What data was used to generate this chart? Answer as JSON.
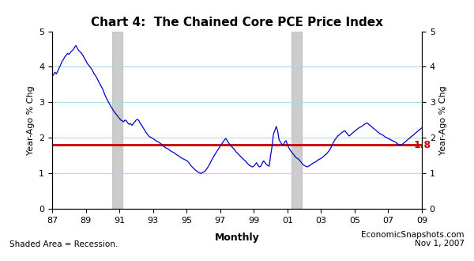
{
  "title": "Chart 4:  The Chained Core PCE Price Index",
  "ylabel_left": "Year-Ago % Chg",
  "ylabel_right": "Year-Ago % Chg",
  "footnote_left": "Shaded Area = Recession.",
  "footnote_right": "EconomicSnapshots.com\nNov 1, 2007",
  "ylim": [
    0,
    5
  ],
  "yticks": [
    0,
    1,
    2,
    3,
    4,
    5
  ],
  "reference_line": 1.8,
  "reference_label": "1.8",
  "line_color": "#0000CC",
  "reference_color": "#CC0000",
  "grid_color": "#ADD8E6",
  "recession_color": "#C0C0C0",
  "recession_alpha": 0.8,
  "recessions": [
    {
      "start": 1990.583,
      "end": 1991.167
    },
    {
      "start": 2001.25,
      "end": 2001.833
    }
  ],
  "start_year": 1987.0,
  "end_year": 2009.0,
  "xtick_values": [
    1987,
    1989,
    1991,
    1993,
    1995,
    1997,
    1999,
    2001,
    2003,
    2005,
    2007,
    2009
  ],
  "xtick_labels": [
    "87",
    "89",
    "91",
    "93",
    "95",
    "97",
    "99",
    "01",
    "03",
    "05",
    "07",
    "09"
  ],
  "pce_data": [
    3.73,
    3.78,
    3.85,
    3.8,
    3.88,
    3.97,
    4.05,
    4.15,
    4.2,
    4.28,
    4.32,
    4.38,
    4.35,
    4.4,
    4.45,
    4.48,
    4.55,
    4.6,
    4.52,
    4.46,
    4.42,
    4.38,
    4.32,
    4.25,
    4.18,
    4.1,
    4.05,
    4.0,
    3.95,
    3.88,
    3.8,
    3.75,
    3.68,
    3.6,
    3.52,
    3.45,
    3.38,
    3.28,
    3.18,
    3.1,
    3.02,
    2.95,
    2.88,
    2.82,
    2.75,
    2.7,
    2.65,
    2.6,
    2.55,
    2.5,
    2.48,
    2.45,
    2.5,
    2.48,
    2.42,
    2.38,
    2.4,
    2.35,
    2.4,
    2.45,
    2.5,
    2.52,
    2.48,
    2.4,
    2.35,
    2.28,
    2.22,
    2.15,
    2.1,
    2.05,
    2.02,
    2.0,
    1.98,
    1.95,
    1.92,
    1.9,
    1.88,
    1.85,
    1.82,
    1.78,
    1.75,
    1.72,
    1.7,
    1.68,
    1.65,
    1.62,
    1.6,
    1.58,
    1.55,
    1.52,
    1.5,
    1.47,
    1.44,
    1.42,
    1.4,
    1.38,
    1.36,
    1.33,
    1.28,
    1.22,
    1.18,
    1.14,
    1.1,
    1.07,
    1.04,
    1.02,
    1.0,
    1.01,
    1.03,
    1.06,
    1.1,
    1.16,
    1.23,
    1.3,
    1.38,
    1.45,
    1.52,
    1.58,
    1.64,
    1.7,
    1.76,
    1.82,
    1.88,
    1.94,
    1.98,
    1.92,
    1.86,
    1.8,
    1.76,
    1.72,
    1.68,
    1.62,
    1.58,
    1.54,
    1.5,
    1.46,
    1.42,
    1.38,
    1.35,
    1.3,
    1.26,
    1.22,
    1.2,
    1.18,
    1.2,
    1.25,
    1.3,
    1.22,
    1.18,
    1.2,
    1.28,
    1.35,
    1.3,
    1.25,
    1.22,
    1.2,
    1.5,
    1.75,
    2.1,
    2.2,
    2.32,
    2.2,
    1.95,
    1.88,
    1.82,
    1.8,
    1.88,
    1.92,
    1.8,
    1.72,
    1.65,
    1.6,
    1.55,
    1.5,
    1.45,
    1.42,
    1.4,
    1.35,
    1.3,
    1.25,
    1.22,
    1.2,
    1.18,
    1.2,
    1.22,
    1.25,
    1.28,
    1.3,
    1.32,
    1.35,
    1.38,
    1.4,
    1.42,
    1.45,
    1.48,
    1.52,
    1.55,
    1.6,
    1.65,
    1.72,
    1.8,
    1.88,
    1.95,
    2.0,
    2.05,
    2.08,
    2.12,
    2.15,
    2.18,
    2.2,
    2.15,
    2.1,
    2.05,
    2.08,
    2.12,
    2.15,
    2.18,
    2.22,
    2.25,
    2.28,
    2.3,
    2.32,
    2.35,
    2.38,
    2.4,
    2.42,
    2.38,
    2.35,
    2.32,
    2.28,
    2.25,
    2.22,
    2.18,
    2.15,
    2.12,
    2.1,
    2.08,
    2.05,
    2.02,
    2.0,
    1.98,
    1.96,
    1.94,
    1.92,
    1.9,
    1.88,
    1.85,
    1.82,
    1.8,
    1.8,
    1.82,
    1.85,
    1.88,
    1.92,
    1.95,
    1.98,
    2.02,
    2.05,
    2.08,
    2.12,
    2.15,
    2.18,
    2.22,
    2.25,
    2.28,
    2.32,
    2.35,
    2.38,
    2.4,
    2.42
  ]
}
